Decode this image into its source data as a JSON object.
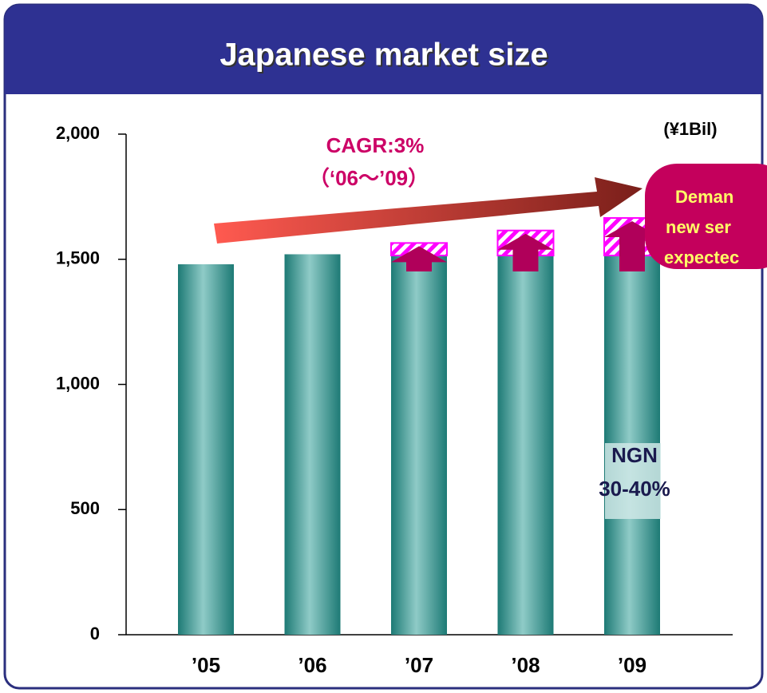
{
  "chart_data": {
    "type": "bar",
    "stacked": true,
    "title": "Japanese market size",
    "unit": "(¥1Bil)",
    "categories": [
      "’05",
      "’06",
      "’07",
      "’08",
      "’09"
    ],
    "series": [
      {
        "color": "#2a8f8a",
        "values": [
          1480,
          1520,
          1515,
          1515,
          1515
        ]
      },
      {
        "color": "#ff00ff",
        "pattern": "hatch",
        "values": [
          null,
          null,
          50,
          100,
          150
        ]
      }
    ],
    "ylim": [
      0,
      2000
    ],
    "yticks": [
      0,
      500,
      {
        "value": 1000,
        "label": "1,000"
      },
      {
        "value": 1500,
        "label": "1,500"
      },
      {
        "value": 2000,
        "label": "2,000"
      }
    ],
    "growth_note": [
      "CAGR:3%",
      "（‘06～’09）"
    ],
    "callout": [
      "Deman",
      "new ser",
      "expectec"
    ],
    "ngn_note": [
      "NGN",
      "30-40%"
    ]
  }
}
